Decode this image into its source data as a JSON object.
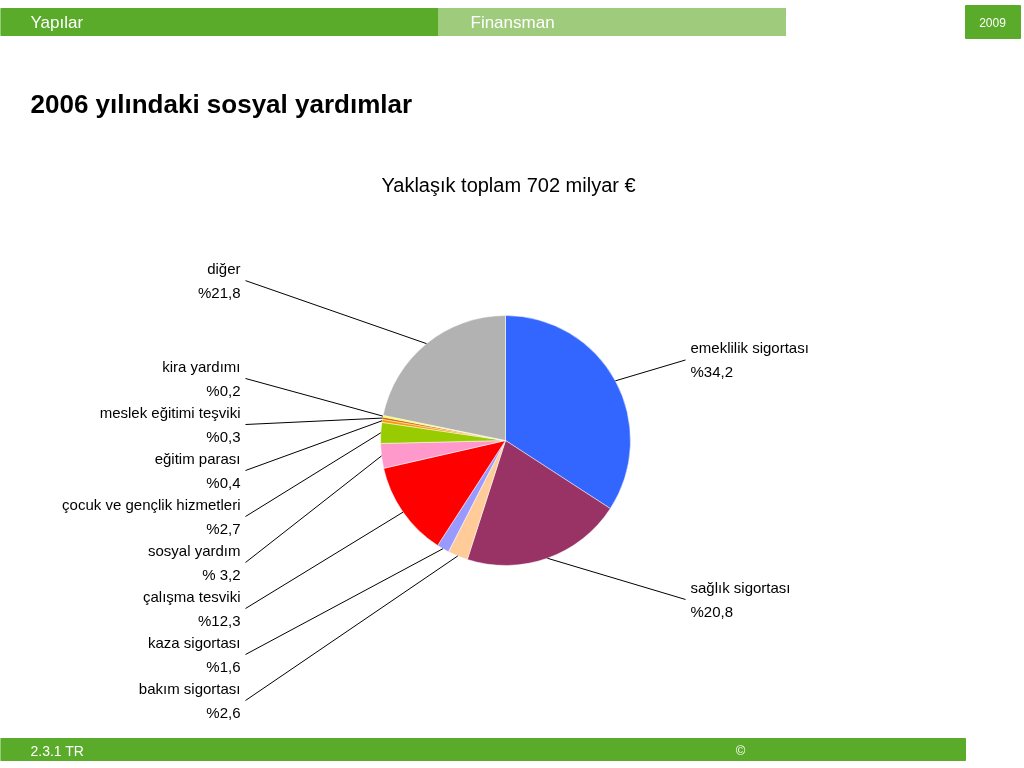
{
  "chart_data": {
    "type": "pie",
    "title": "2006 yılındaki sosyal yardımlar",
    "subtitle": "Yaklaşık toplam 702 milyar €",
    "categories": [
      "emeklilik sigortası",
      "sağlık sigortası",
      "bakım sigortası",
      "kaza sigortası",
      "çalışma tesviki",
      "sosyal yardım",
      "çocuk ve gençlik hizmetleri",
      "eğitim parası",
      "meslek eğitimi teşviki",
      "kira yardımı",
      "diğer"
    ],
    "values": [
      34.2,
      20.8,
      2.6,
      1.6,
      12.3,
      3.2,
      2.7,
      0.4,
      0.3,
      0.2,
      21.8
    ],
    "value_labels": [
      "%34,2",
      "%20,8",
      "%2,6",
      "%1,6",
      "%12,3",
      "% 3,2",
      "%2,7",
      "%0,4",
      "%0,3",
      "%0,2",
      "%21,8"
    ],
    "colors": [
      "#3366ff",
      "#993366",
      "#ffcc99",
      "#9999ff",
      "#ff0000",
      "#ff99cc",
      "#99cc00",
      "#ff9900",
      "#cc6600",
      "#ffff00",
      "#b2b2b2"
    ],
    "annotations": [
      "Yapılar",
      "Finansman",
      "2009",
      "2.3.1 TR",
      "©"
    ]
  }
}
